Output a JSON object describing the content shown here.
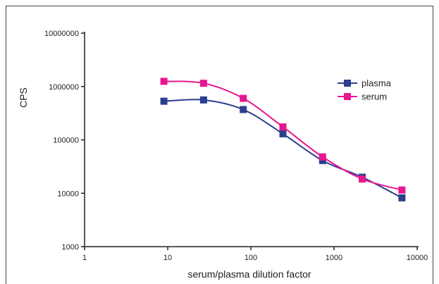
{
  "chart_data": {
    "type": "line",
    "title": "",
    "xlabel": "serum/plasma dilution factor",
    "ylabel": "CPS",
    "x_scale": "log",
    "y_scale": "log",
    "xlim": [
      1,
      10000
    ],
    "ylim": [
      1000,
      10000000
    ],
    "x_ticks": [
      1,
      10,
      100,
      1000,
      10000
    ],
    "x_tick_labels": [
      "1",
      "10",
      "100",
      "1000",
      "10000"
    ],
    "y_ticks": [
      1000,
      10000,
      100000,
      1000000,
      10000000
    ],
    "y_tick_labels": [
      "1000",
      "10000",
      "100000",
      "1000000",
      "10000000"
    ],
    "grid": false,
    "legend_position": "top-right",
    "series": [
      {
        "name": "plasma",
        "color": "#2b3f8f",
        "x": [
          9,
          27,
          81,
          243,
          729,
          2187,
          6561
        ],
        "y": [
          530000,
          560000,
          370000,
          130000,
          41000,
          20000,
          8200
        ]
      },
      {
        "name": "serum",
        "color": "#e8168f",
        "x": [
          9,
          27,
          81,
          243,
          729,
          2187,
          6561
        ],
        "y": [
          1250000,
          1150000,
          600000,
          175000,
          48000,
          18500,
          11500
        ]
      }
    ]
  }
}
